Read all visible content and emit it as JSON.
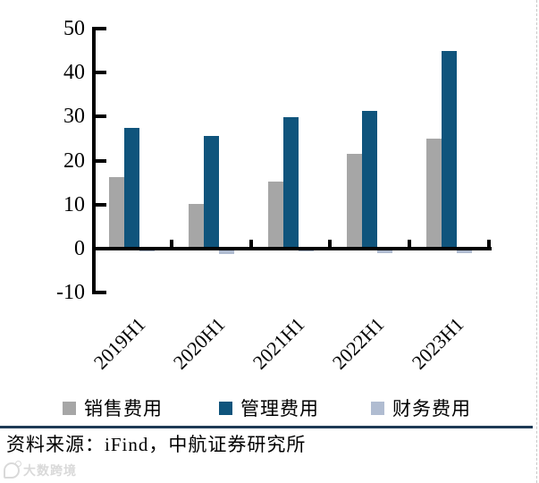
{
  "chart_data": {
    "type": "bar",
    "categories": [
      "2019H1",
      "2020H1",
      "2021H1",
      "2022H1",
      "2023H1"
    ],
    "series": [
      {
        "name": "销售费用",
        "color": "#a6a6a6",
        "values": [
          16.3,
          10.2,
          15.2,
          21.5,
          24.9
        ]
      },
      {
        "name": "管理费用",
        "color": "#0f547c",
        "values": [
          27.4,
          25.7,
          29.9,
          31.3,
          45.0
        ]
      },
      {
        "name": "财务费用",
        "color": "#b0bcd1",
        "values": [
          -0.7,
          -1.3,
          -0.6,
          -1.1,
          -1.1
        ]
      }
    ],
    "title": "",
    "xlabel": "",
    "ylabel": "",
    "ylim": [
      -10,
      50
    ],
    "yticks": [
      50,
      40,
      30,
      20,
      10,
      0,
      -10
    ],
    "grid": false,
    "legend_position": "bottom"
  },
  "footer": {
    "source_label": "资料来源：iFind，中航证券研究所"
  },
  "watermark": {
    "text": "大数跨境"
  },
  "colors": {
    "axis": "#000000",
    "divider": "#1e3a56",
    "series_gray": "#a6a6a6",
    "series_blue": "#0f547c",
    "series_light": "#b0bcd1"
  }
}
